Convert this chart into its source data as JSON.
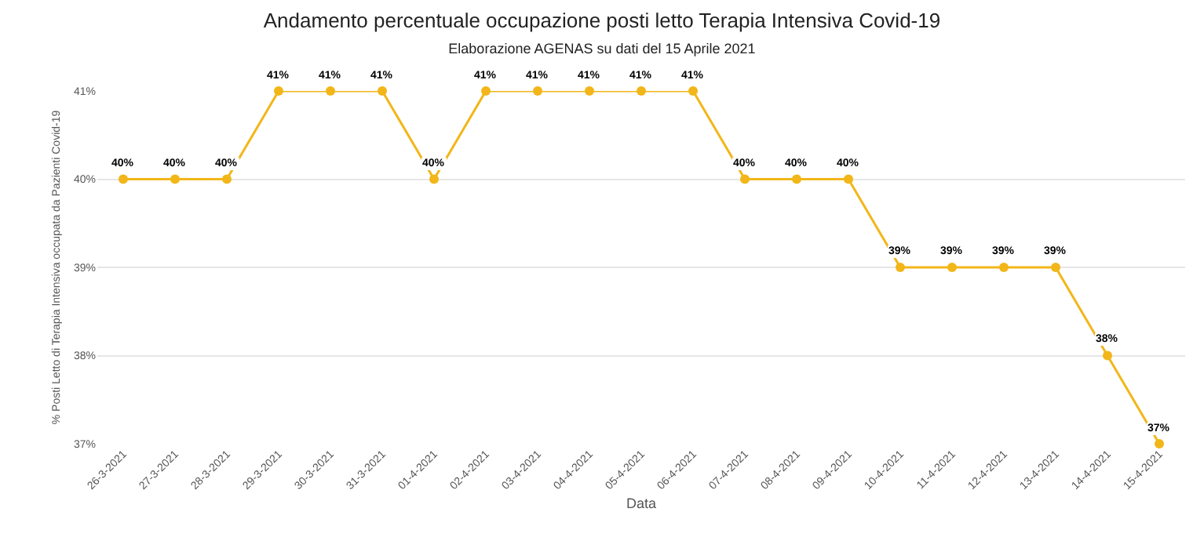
{
  "chart_data": {
    "type": "line",
    "title": "Andamento percentuale occupazione posti letto Terapia Intensiva Covid-19",
    "subtitle": "Elaborazione AGENAS su dati del 15 Aprile 2021",
    "xlabel": "Data",
    "ylabel": "% Posti Letto di Terapia Intensiva occupata da Pazienti Covid-19",
    "categories": [
      "26-3-2021",
      "27-3-2021",
      "28-3-2021",
      "29-3-2021",
      "30-3-2021",
      "31-3-2021",
      "01-4-2021",
      "02-4-2021",
      "03-4-2021",
      "04-4-2021",
      "05-4-2021",
      "06-4-2021",
      "07-4-2021",
      "08-4-2021",
      "09-4-2021",
      "10-4-2021",
      "11-4-2021",
      "12-4-2021",
      "13-4-2021",
      "14-4-2021",
      "15-4-2021"
    ],
    "series": [
      {
        "color": "#f2b619",
        "values": [
          40,
          40,
          40,
          41,
          41,
          41,
          40,
          41,
          41,
          41,
          41,
          41,
          40,
          40,
          40,
          39,
          39,
          39,
          39,
          38,
          37
        ],
        "value_labels": [
          "40%",
          "40%",
          "40%",
          "41%",
          "41%",
          "41%",
          "40%",
          "41%",
          "41%",
          "41%",
          "41%",
          "41%",
          "40%",
          "40%",
          "40%",
          "39%",
          "39%",
          "39%",
          "39%",
          "38%",
          "37%"
        ]
      }
    ],
    "ylim": [
      37,
      41
    ],
    "yticks": [
      {
        "value": 37,
        "label": "37%"
      },
      {
        "value": 38,
        "label": "38%"
      },
      {
        "value": 39,
        "label": "39%"
      },
      {
        "value": 40,
        "label": "40%"
      },
      {
        "value": 41,
        "label": "41%"
      }
    ],
    "grid": "y",
    "marker": "circle",
    "line_style": "solid"
  }
}
